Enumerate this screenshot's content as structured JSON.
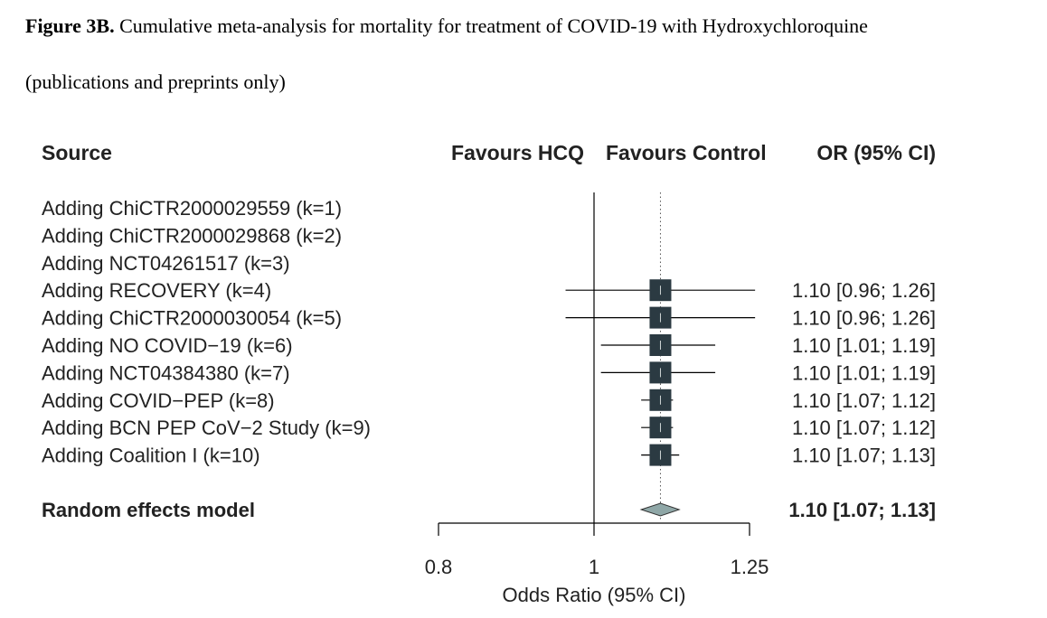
{
  "caption": {
    "label": "Figure 3B.",
    "line1": "Cumulative meta-analysis for mortality for treatment of COVID-19 with Hydroxychloroquine",
    "line2": "(publications and preprints only)"
  },
  "headers": {
    "source": "Source",
    "favours_left": "Favours HCQ",
    "favours_right": "Favours Control",
    "ci": "OR (95% CI)"
  },
  "chart_data": {
    "type": "forest",
    "xlabel": "Odds Ratio (95% CI)",
    "x_scale": "log",
    "xlim": [
      0.8,
      1.25
    ],
    "x_ticks": [
      0.8,
      1,
      1.25
    ],
    "x_tick_labels": [
      "0.8",
      "1",
      "1.25"
    ],
    "reference_line": 1,
    "summary_line": 1.1,
    "rows": [
      {
        "label": "Adding ChiCTR2000029559 (k=1)",
        "or": null,
        "lower": null,
        "upper": null,
        "ci_text": ""
      },
      {
        "label": "Adding ChiCTR2000029868 (k=2)",
        "or": null,
        "lower": null,
        "upper": null,
        "ci_text": ""
      },
      {
        "label": "Adding NCT04261517 (k=3)",
        "or": null,
        "lower": null,
        "upper": null,
        "ci_text": ""
      },
      {
        "label": "Adding RECOVERY (k=4)",
        "or": 1.1,
        "lower": 0.96,
        "upper": 1.26,
        "ci_text": "1.10 [0.96; 1.26]"
      },
      {
        "label": "Adding ChiCTR2000030054 (k=5)",
        "or": 1.1,
        "lower": 0.96,
        "upper": 1.26,
        "ci_text": "1.10 [0.96; 1.26]"
      },
      {
        "label": "Adding NO COVID−19 (k=6)",
        "or": 1.1,
        "lower": 1.01,
        "upper": 1.19,
        "ci_text": "1.10 [1.01; 1.19]"
      },
      {
        "label": "Adding NCT04384380 (k=7)",
        "or": 1.1,
        "lower": 1.01,
        "upper": 1.19,
        "ci_text": "1.10 [1.01; 1.19]"
      },
      {
        "label": "Adding COVID−PEP (k=8)",
        "or": 1.1,
        "lower": 1.07,
        "upper": 1.12,
        "ci_text": "1.10 [1.07; 1.12]"
      },
      {
        "label": "Adding BCN PEP CoV−2 Study (k=9)",
        "or": 1.1,
        "lower": 1.07,
        "upper": 1.12,
        "ci_text": "1.10 [1.07; 1.12]"
      },
      {
        "label": "Adding Coalition I (k=10)",
        "or": 1.1,
        "lower": 1.07,
        "upper": 1.13,
        "ci_text": "1.10 [1.07; 1.13]"
      }
    ],
    "summary": {
      "label": "Random effects model",
      "or": 1.1,
      "lower": 1.07,
      "upper": 1.13,
      "ci_text": "1.10 [1.07; 1.13]"
    },
    "colors": {
      "box": "#2b3a42",
      "diamond": "#8fa7a7",
      "line": "#000000"
    }
  }
}
